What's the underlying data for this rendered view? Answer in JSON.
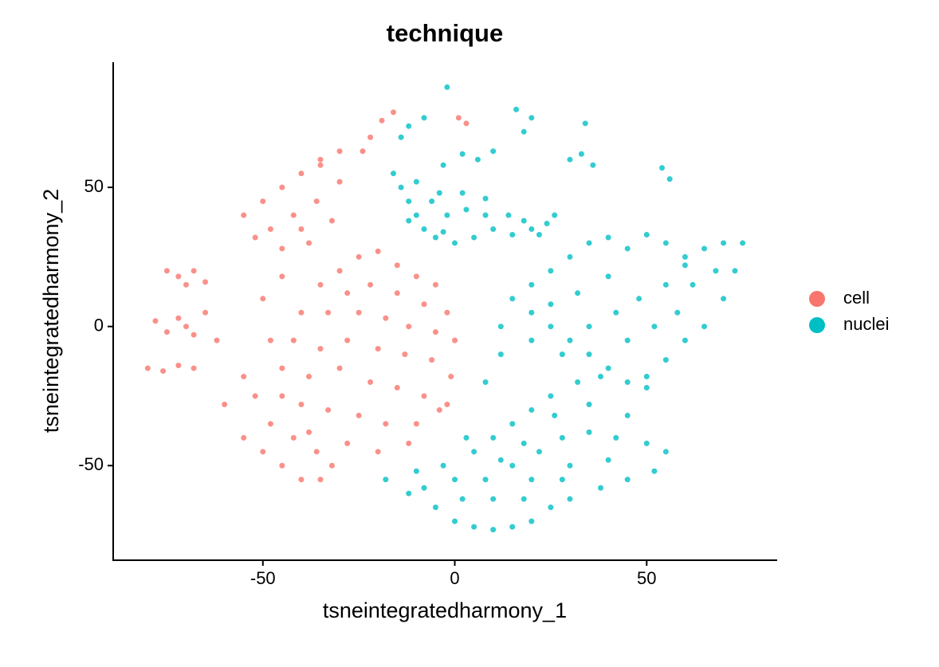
{
  "chart_data": {
    "type": "scatter",
    "title": "technique",
    "x_label": "tsneintegratedharmony_1",
    "y_label": "tsneintegratedharmony_2",
    "xlim": [
      -89,
      84
    ],
    "ylim": [
      -84,
      95
    ],
    "xticks": [
      -50,
      0,
      50
    ],
    "yticks": [
      -50,
      0,
      50
    ],
    "grid": false,
    "legend": "right",
    "series": [
      {
        "name": "cell",
        "color": "#F8766D",
        "x": [
          -25,
          -20,
          -15,
          -10,
          -5,
          -30,
          -35,
          -28,
          -22,
          -15,
          -8,
          -2,
          -40,
          -33,
          -25,
          -18,
          -12,
          -5,
          0,
          -42,
          -35,
          -28,
          -20,
          -13,
          -6,
          -1,
          -45,
          -38,
          -30,
          -22,
          -15,
          -8,
          -2,
          -40,
          -33,
          -25,
          -18,
          -10,
          -4,
          -48,
          -50,
          -45,
          -20,
          -12,
          -28,
          -55,
          -50,
          -45,
          -40,
          -48,
          -42,
          -36,
          -52,
          -45,
          -38,
          -32,
          -35,
          -55,
          -60,
          -50,
          -45,
          -40,
          -35,
          -30,
          -48,
          -42,
          -36,
          -32,
          -45,
          -38,
          -52,
          -55,
          -35,
          -40,
          -75,
          -72,
          -68,
          -65,
          -70,
          -78,
          -75,
          -72,
          -70,
          -68,
          -80,
          -76,
          -72,
          -68,
          -65,
          -62,
          -19,
          -16,
          -22,
          -24,
          1,
          3,
          -30
        ],
        "y": [
          25,
          27,
          22,
          18,
          15,
          20,
          15,
          12,
          15,
          12,
          8,
          5,
          5,
          5,
          5,
          3,
          0,
          -2,
          -5,
          -5,
          -8,
          -5,
          -8,
          -10,
          -12,
          -18,
          -15,
          -18,
          -15,
          -20,
          -22,
          -25,
          -28,
          -28,
          -30,
          -32,
          -35,
          -35,
          -30,
          -5,
          10,
          18,
          -45,
          -42,
          -42,
          -40,
          -45,
          -50,
          -55,
          -35,
          -40,
          -45,
          -25,
          -25,
          -38,
          -50,
          -55,
          -18,
          -28,
          45,
          50,
          55,
          58,
          52,
          35,
          40,
          45,
          38,
          28,
          30,
          32,
          40,
          60,
          35,
          20,
          18,
          20,
          16,
          15,
          2,
          -2,
          3,
          0,
          -3,
          -15,
          -16,
          -14,
          -15,
          5,
          -5,
          74,
          77,
          68,
          63,
          75,
          73,
          63
        ]
      },
      {
        "name": "nuclei",
        "color": "#00BFC4",
        "x": [
          -16,
          -14,
          -12,
          -10,
          -8,
          -5,
          0,
          5,
          10,
          15,
          20,
          24,
          -6,
          -2,
          3,
          8,
          14,
          -10,
          -4,
          2,
          8,
          18,
          22,
          -12,
          -3,
          15,
          20,
          25,
          30,
          35,
          40,
          45,
          50,
          55,
          60,
          65,
          70,
          73,
          75,
          70,
          65,
          60,
          55,
          50,
          45,
          40,
          35,
          30,
          25,
          20,
          12,
          20,
          28,
          35,
          42,
          48,
          55,
          62,
          68,
          40,
          32,
          25,
          45,
          52,
          58,
          12,
          8,
          38,
          50,
          60,
          -18,
          -12,
          -5,
          0,
          5,
          10,
          15,
          20,
          -10,
          -3,
          5,
          10,
          15,
          20,
          25,
          0,
          8,
          15,
          22,
          28,
          35,
          42,
          50,
          55,
          52,
          45,
          38,
          30,
          25,
          18,
          10,
          2,
          -8,
          30,
          40,
          20,
          12,
          3,
          18,
          26,
          35,
          45,
          32,
          28,
          -12,
          -8,
          -14,
          -3,
          2,
          6,
          10,
          16,
          20,
          18,
          33,
          36,
          30,
          54,
          56,
          -2,
          34,
          26
        ],
        "y": [
          55,
          50,
          45,
          40,
          35,
          32,
          30,
          32,
          35,
          33,
          35,
          37,
          45,
          40,
          42,
          40,
          40,
          52,
          48,
          48,
          46,
          38,
          33,
          38,
          34,
          10,
          5,
          0,
          -5,
          -10,
          -15,
          -20,
          -18,
          -12,
          -5,
          0,
          10,
          20,
          30,
          30,
          28,
          25,
          30,
          33,
          28,
          32,
          30,
          25,
          20,
          15,
          0,
          -5,
          -10,
          0,
          5,
          10,
          15,
          15,
          20,
          18,
          12,
          8,
          -5,
          0,
          5,
          -10,
          -20,
          -18,
          -22,
          22,
          -55,
          -60,
          -65,
          -70,
          -72,
          -73,
          -72,
          -70,
          -52,
          -50,
          -45,
          -40,
          -35,
          -30,
          -25,
          -55,
          -55,
          -50,
          -45,
          -40,
          -38,
          -40,
          -42,
          -45,
          -52,
          -55,
          -58,
          -62,
          -65,
          -62,
          -62,
          -62,
          -58,
          -50,
          -48,
          -55,
          -48,
          -40,
          -42,
          -32,
          -28,
          -32,
          -20,
          -55,
          72,
          75,
          68,
          58,
          62,
          60,
          63,
          78,
          75,
          70,
          62,
          58,
          60,
          57,
          53,
          86,
          73,
          40
        ]
      }
    ]
  }
}
